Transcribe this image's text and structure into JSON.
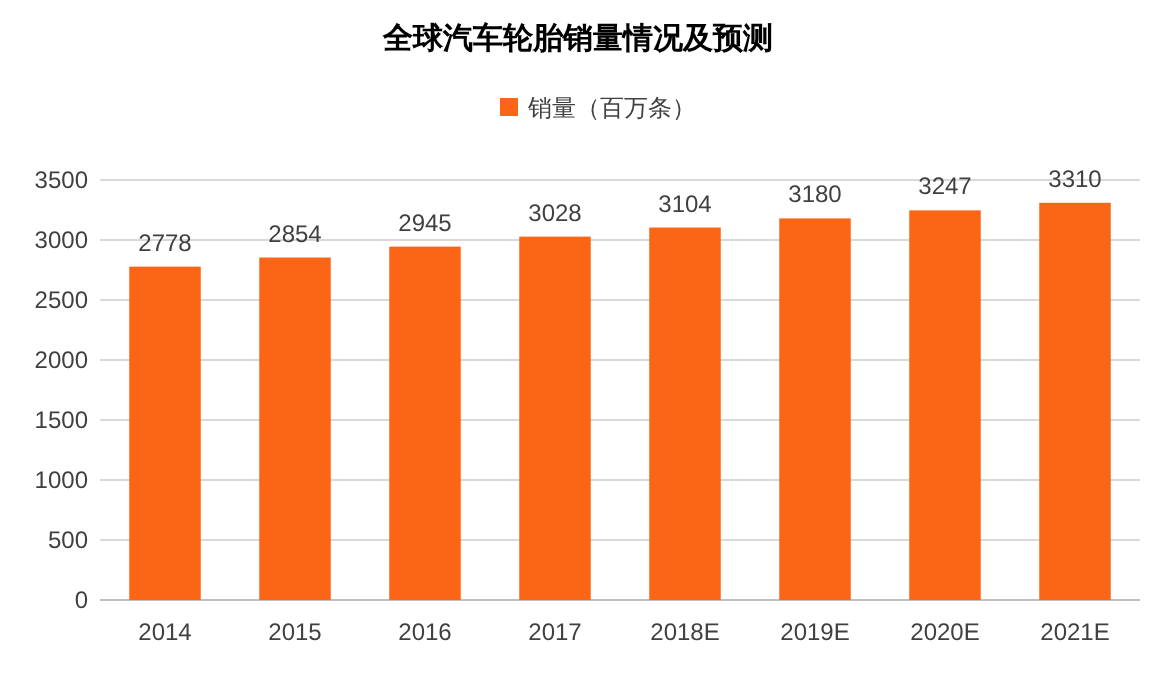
{
  "chart_data": {
    "type": "bar",
    "title": "全球汽车轮胎销量情况及预测",
    "categories": [
      "2014",
      "2015",
      "2016",
      "2017",
      "2018E",
      "2019E",
      "2020E",
      "2021E"
    ],
    "series": [
      {
        "name": "销量（百万条）",
        "color": "#fa6616",
        "values": [
          2778,
          2854,
          2945,
          3028,
          3104,
          3180,
          3247,
          3310
        ]
      }
    ],
    "ylim": [
      0,
      3500
    ],
    "yticks": [
      0,
      500,
      1000,
      1500,
      2000,
      2500,
      3000,
      3500
    ],
    "grid": "y",
    "legend": "top",
    "data_labels": true
  }
}
